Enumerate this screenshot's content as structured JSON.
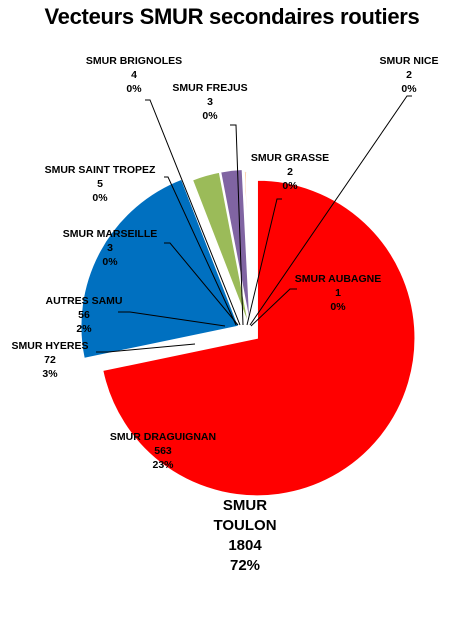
{
  "chart_data": {
    "type": "pie",
    "title": "Vecteurs SMUR secondaires routiers",
    "slices": [
      {
        "label": "SMUR TOULON",
        "value": 1804,
        "percent": "72%",
        "color": "#ff0000"
      },
      {
        "label": "SMUR DRAGUIGNAN",
        "value": 563,
        "percent": "23%",
        "color": "#0070c0"
      },
      {
        "label": "SMUR HYERES",
        "value": 72,
        "percent": "3%",
        "color": "#9bbb59"
      },
      {
        "label": "AUTRES SAMU",
        "value": 56,
        "percent": "2%",
        "color": "#8064a2"
      },
      {
        "label": "SMUR MARSEILLE",
        "value": 3,
        "percent": "0%",
        "color": "#4bacc6"
      },
      {
        "label": "SMUR SAINT TROPEZ",
        "value": 5,
        "percent": "0%",
        "color": "#f79646"
      },
      {
        "label": "SMUR BRIGNOLES",
        "value": 4,
        "percent": "0%",
        "color": "#2c4d75"
      },
      {
        "label": "SMUR FREJUS",
        "value": 3,
        "percent": "0%",
        "color": "#772c2a"
      },
      {
        "label": "SMUR GRASSE",
        "value": 2,
        "percent": "0%",
        "color": "#5f7530"
      },
      {
        "label": "SMUR NICE",
        "value": 2,
        "percent": "0%",
        "color": "#4d3b62"
      },
      {
        "label": "SMUR AUBAGNE",
        "value": 1,
        "percent": "0%",
        "color": "#276a7c"
      }
    ]
  }
}
